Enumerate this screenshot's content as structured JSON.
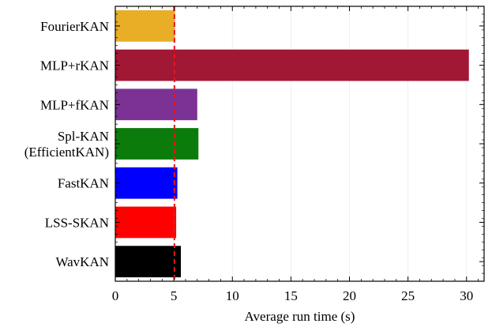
{
  "chart_data": {
    "type": "bar",
    "orientation": "horizontal",
    "categories": [
      [
        "FourierKAN"
      ],
      [
        "MLP+rKAN"
      ],
      [
        "MLP+fKAN"
      ],
      [
        "Spl-KAN",
        "(EfficientKAN)"
      ],
      [
        "FastKAN"
      ],
      [
        "LSS-SKAN"
      ],
      [
        "WavKAN"
      ]
    ],
    "values": [
      5.1,
      30.2,
      7.0,
      7.1,
      5.3,
      5.2,
      5.6
    ],
    "colors": [
      "#E8AE25",
      "#A01834",
      "#7B3294",
      "#0B7B0B",
      "#0000FF",
      "#FF0000",
      "#000000"
    ],
    "xlabel": "Average run time (s)",
    "ylabel": "",
    "title": "",
    "xlim": [
      0,
      31.5
    ],
    "xticks": [
      0,
      5,
      10,
      15,
      20,
      25,
      30
    ],
    "reference_line": {
      "x": 5.05,
      "color": "#E8141E",
      "style": "dashed"
    },
    "grid": "vertical, faint"
  }
}
